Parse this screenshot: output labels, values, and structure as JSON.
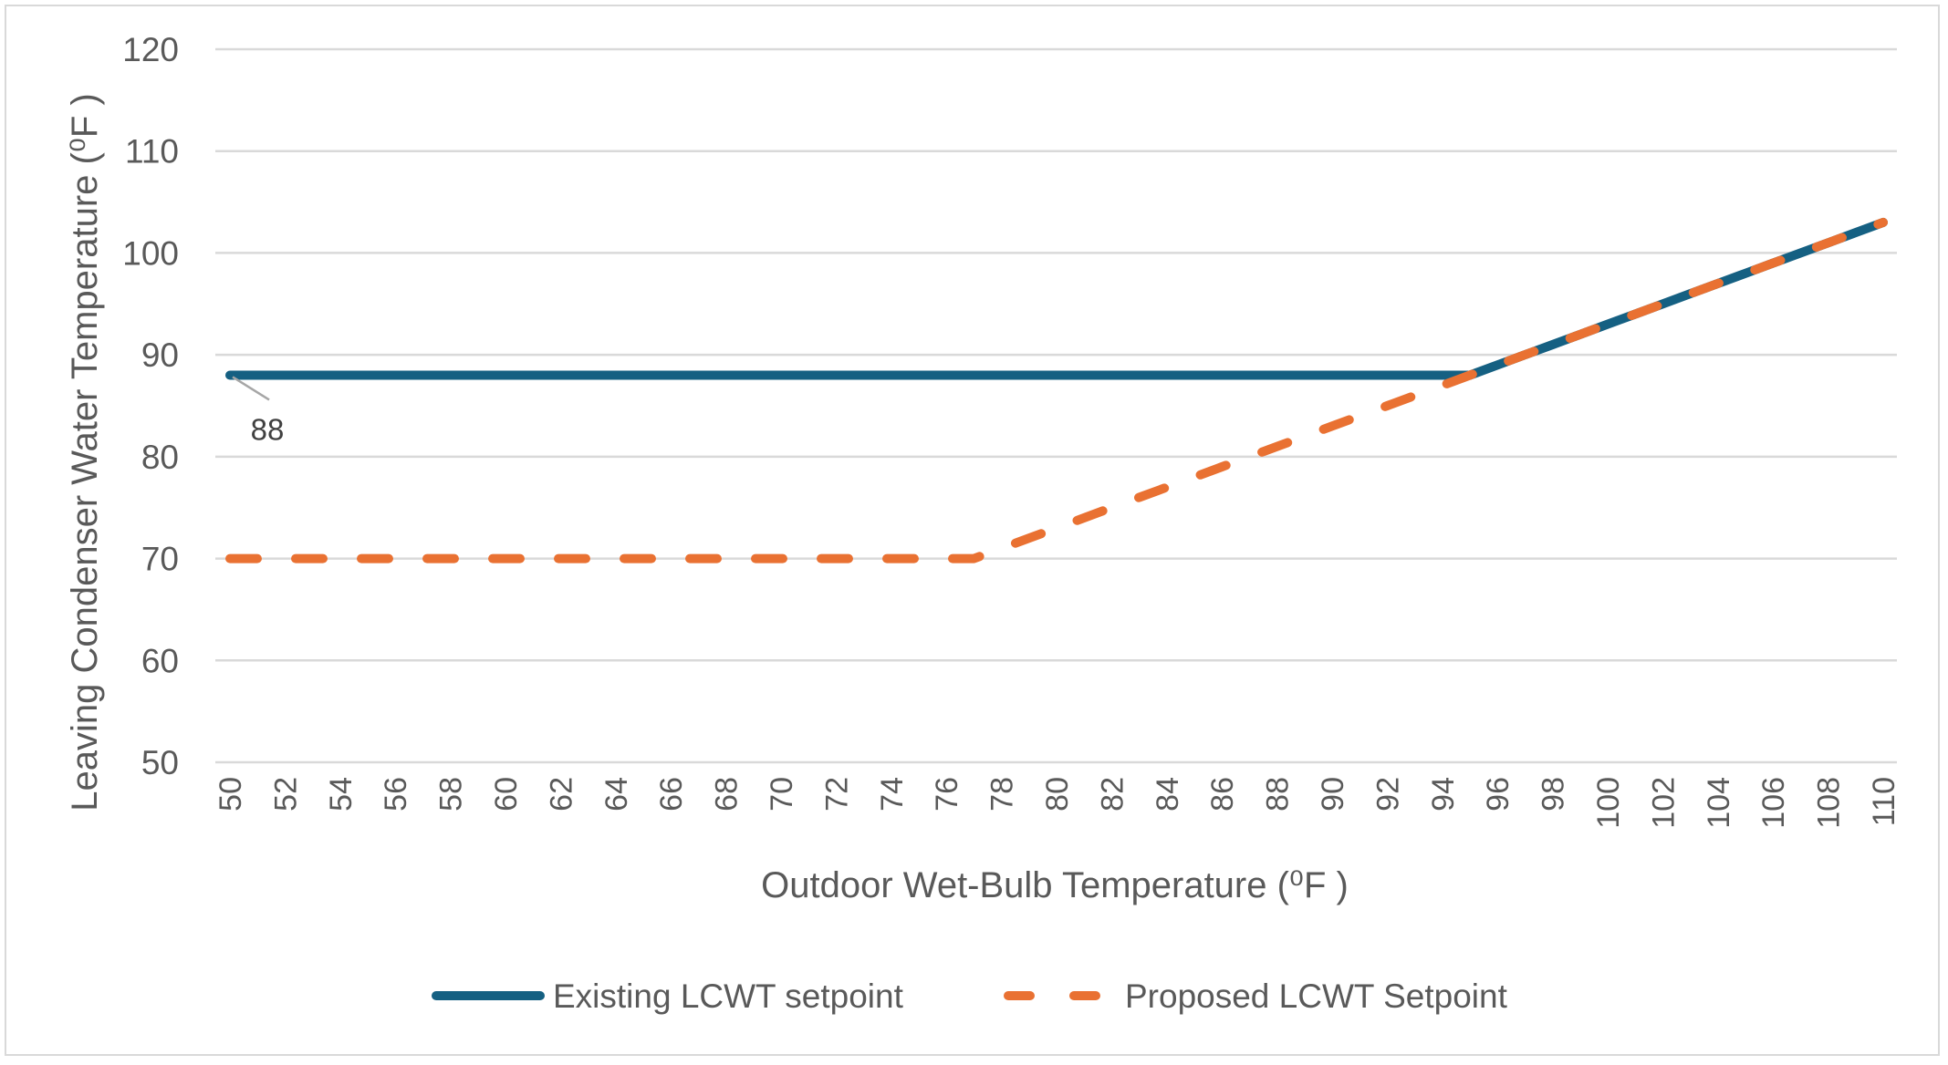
{
  "chart_data": {
    "type": "line",
    "title": "",
    "xlabel": "Outdoor Wet-Bulb Temperature (⁰F )",
    "ylabel": "Leaving Condenser Water Temperature (⁰F )",
    "ylim": [
      50,
      120
    ],
    "y_ticks": [
      50,
      60,
      70,
      80,
      90,
      100,
      110,
      120
    ],
    "x_tick_labels": [
      "50",
      "52",
      "54",
      "56",
      "58",
      "60",
      "62",
      "64",
      "66",
      "68",
      "70",
      "72",
      "74",
      "76",
      "78",
      "80",
      "82",
      "84",
      "86",
      "88",
      "90",
      "92",
      "94",
      "96",
      "98",
      "100",
      "102",
      "104",
      "106",
      "108",
      "110"
    ],
    "x": [
      50,
      51,
      52,
      53,
      54,
      55,
      56,
      57,
      58,
      59,
      60,
      61,
      62,
      63,
      64,
      65,
      66,
      67,
      68,
      69,
      70,
      71,
      72,
      73,
      74,
      75,
      76,
      77,
      78,
      79,
      80,
      81,
      82,
      83,
      84,
      85,
      86,
      87,
      88,
      89,
      90,
      91,
      92,
      93,
      94,
      95,
      96,
      97,
      98,
      99,
      100,
      101,
      102,
      103,
      104,
      105,
      106,
      107,
      108,
      109,
      110
    ],
    "grid": true,
    "legend_position": "bottom",
    "series": [
      {
        "name": "Existing LCWT setpoint",
        "color": "#156082",
        "style": "solid",
        "values": [
          88,
          88,
          88,
          88,
          88,
          88,
          88,
          88,
          88,
          88,
          88,
          88,
          88,
          88,
          88,
          88,
          88,
          88,
          88,
          88,
          88,
          88,
          88,
          88,
          88,
          88,
          88,
          88,
          88,
          88,
          88,
          88,
          88,
          88,
          88,
          88,
          88,
          88,
          88,
          88,
          88,
          88,
          88,
          88,
          88,
          88,
          89,
          90,
          91,
          92,
          93,
          94,
          95,
          96,
          97,
          98,
          99,
          100,
          101,
          102,
          103
        ]
      },
      {
        "name": "Proposed LCWT Setpoint",
        "color": "#E97132",
        "style": "dashed",
        "values": [
          70,
          70,
          70,
          70,
          70,
          70,
          70,
          70,
          70,
          70,
          70,
          70,
          70,
          70,
          70,
          70,
          70,
          70,
          70,
          70,
          70,
          70,
          70,
          70,
          70,
          70,
          70,
          70,
          71,
          72,
          73,
          74,
          75,
          76,
          77,
          78,
          79,
          80,
          81,
          82,
          83,
          84,
          85,
          86,
          87,
          88,
          89,
          90,
          91,
          92,
          93,
          94,
          95,
          96,
          97,
          98,
          99,
          100,
          101,
          102,
          103
        ]
      }
    ],
    "annotations": [
      {
        "series": "Existing LCWT setpoint",
        "x": 50,
        "y": 88,
        "text": "88"
      }
    ]
  }
}
